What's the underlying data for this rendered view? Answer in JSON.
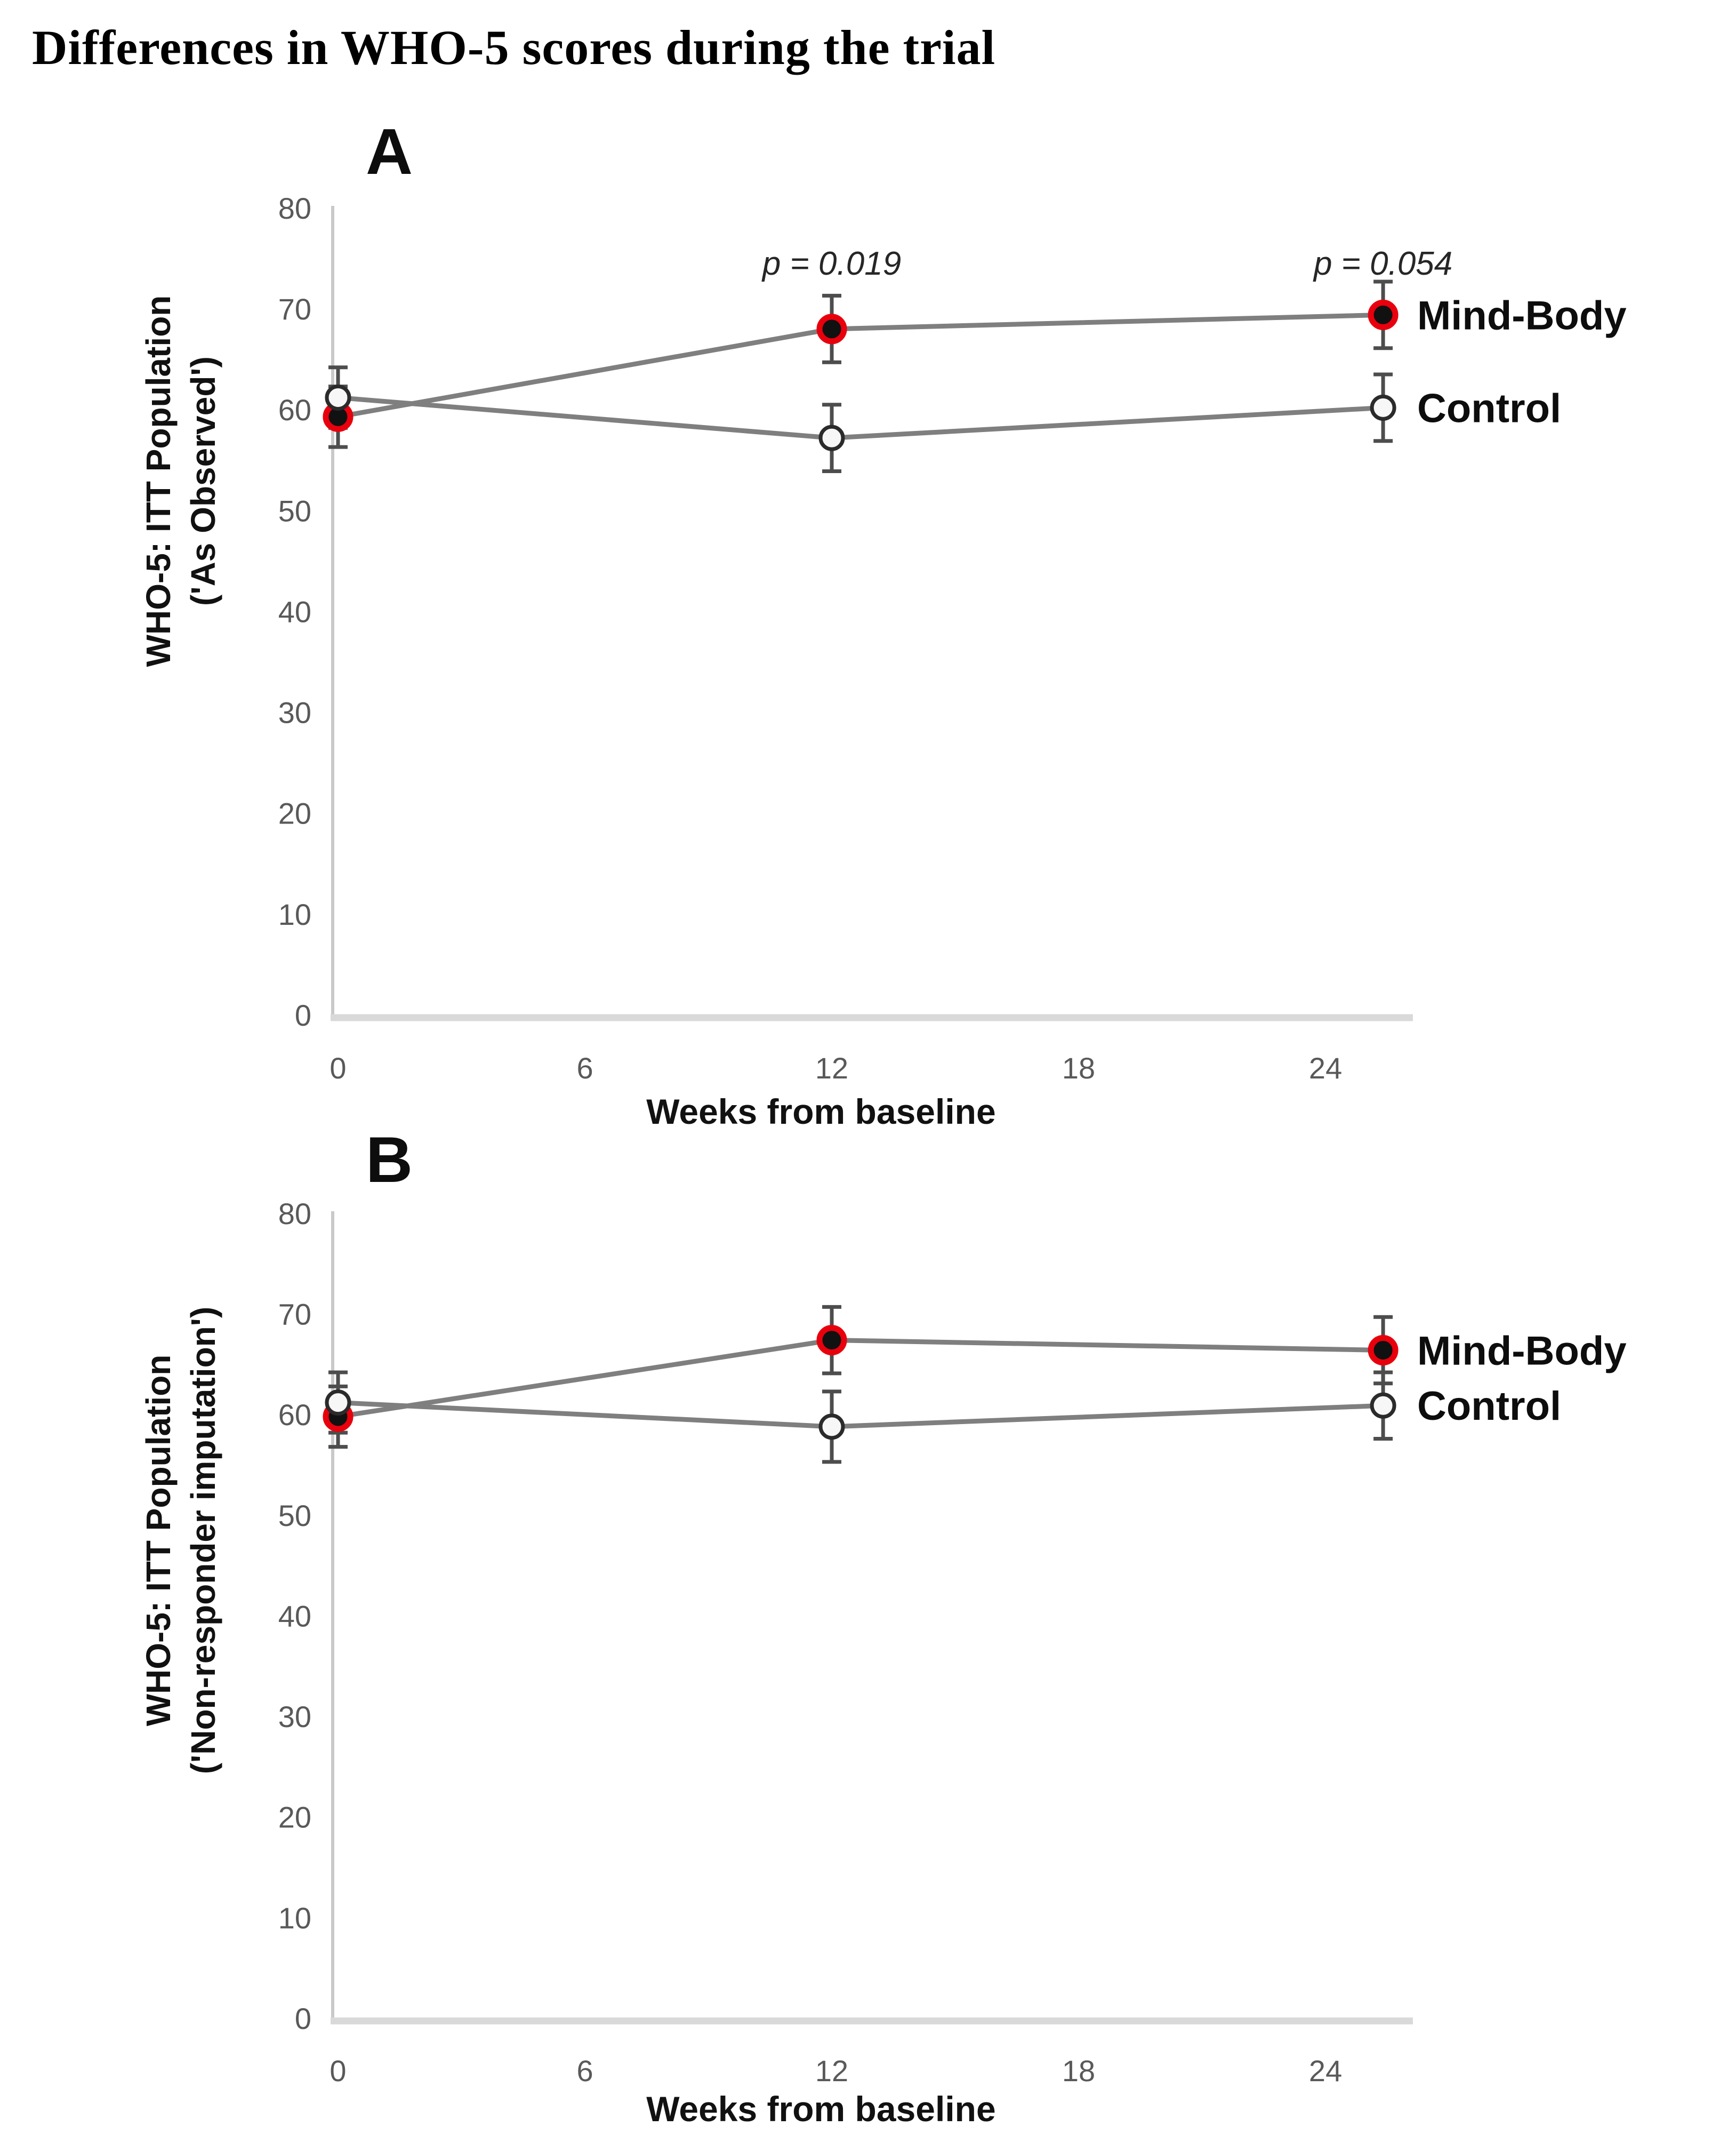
{
  "page": {
    "title": "Differences in WHO-5 scores during the trial"
  },
  "colors": {
    "mind_body_ring": "#e8000d",
    "marker_fill": "#111111",
    "control_fill": "#f7f7f7",
    "control_ring": "#2b2b2b",
    "series_line": "#7f7f7f",
    "error_bar": "#4d4d4d",
    "axis_line": "#c9c9c9",
    "baseline": "#d9d9d9",
    "tick_label": "#595959"
  },
  "chart_data": [
    {
      "type": "line",
      "panel_label": "A",
      "xlabel": "Weeks from baseline",
      "ylabel_line1": "WHO-5: ITT Population",
      "ylabel_line2": "('As Observed')",
      "x_weeks": [
        0,
        12,
        26
      ],
      "xticks": [
        0,
        6,
        12,
        18,
        24
      ],
      "yticks": [
        80,
        70,
        60,
        50,
        40,
        30,
        20,
        10,
        0
      ],
      "ylim": [
        0,
        80
      ],
      "grid": false,
      "legend_position": "right-of-last-point",
      "series": [
        {
          "name": "Mind-Body",
          "marker": "filled-red-ring",
          "values": [
            59.3,
            68.0,
            69.4
          ],
          "error": [
            3.0,
            3.3,
            3.3
          ]
        },
        {
          "name": "Control",
          "marker": "open-circle",
          "values": [
            61.2,
            57.2,
            60.2
          ],
          "error": [
            3.0,
            3.3,
            3.3
          ]
        }
      ],
      "annotations": [
        {
          "text": "p = 0.019",
          "week": 12,
          "y_value": 74.5
        },
        {
          "text": "p = 0.054",
          "week": 26,
          "y_value": 74.5
        }
      ]
    },
    {
      "type": "line",
      "panel_label": "B",
      "xlabel": "Weeks from baseline",
      "ylabel_line1": "WHO-5: ITT Population",
      "ylabel_line2": "('Non-responder imputation')",
      "x_weeks": [
        0,
        12,
        26
      ],
      "xticks": [
        0,
        6,
        12,
        18,
        24
      ],
      "yticks": [
        80,
        70,
        60,
        50,
        40,
        30,
        20,
        10,
        0
      ],
      "ylim": [
        0,
        80
      ],
      "grid": false,
      "legend_position": "right-of-last-point",
      "series": [
        {
          "name": "Mind-Body",
          "marker": "filled-red-ring",
          "values": [
            59.8,
            67.4,
            66.4
          ],
          "error": [
            3.0,
            3.3,
            3.3
          ]
        },
        {
          "name": "Control",
          "marker": "open-circle",
          "values": [
            61.2,
            58.8,
            60.9
          ],
          "error": [
            3.0,
            3.5,
            3.3
          ]
        }
      ],
      "annotations": []
    }
  ]
}
